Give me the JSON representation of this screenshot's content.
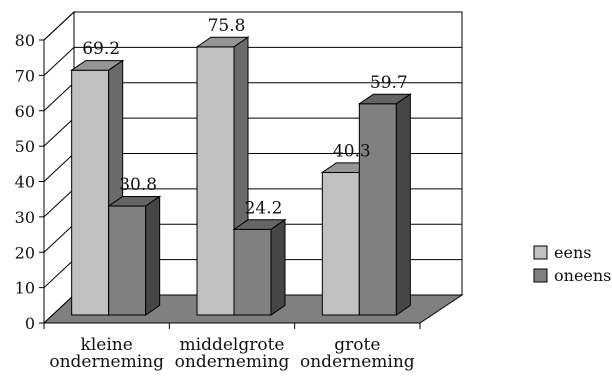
{
  "chart_data": {
    "type": "bar",
    "title": "",
    "xlabel": "",
    "ylabel": "",
    "categories": [
      [
        "kleine",
        "onderneming"
      ],
      [
        "middelgrote",
        "onderneming"
      ],
      [
        "grote",
        "onderneming"
      ]
    ],
    "series": [
      {
        "name": "eens",
        "values": [
          69.2,
          75.8,
          40.3
        ],
        "color": "#c0c0c0"
      },
      {
        "name": "oneens",
        "values": [
          30.8,
          24.2,
          59.7
        ],
        "color": "#808080"
      }
    ],
    "ylim": [
      0,
      80
    ],
    "yticks": [
      "0",
      "10",
      "20",
      "30",
      "40",
      "50",
      "60",
      "70",
      "80"
    ],
    "data_labels": [
      "69.2",
      "30.8",
      "75.8",
      "24.2",
      "40.3",
      "59.7"
    ],
    "grid": true,
    "style": "3d-clustered-column",
    "legend_position": "right"
  }
}
